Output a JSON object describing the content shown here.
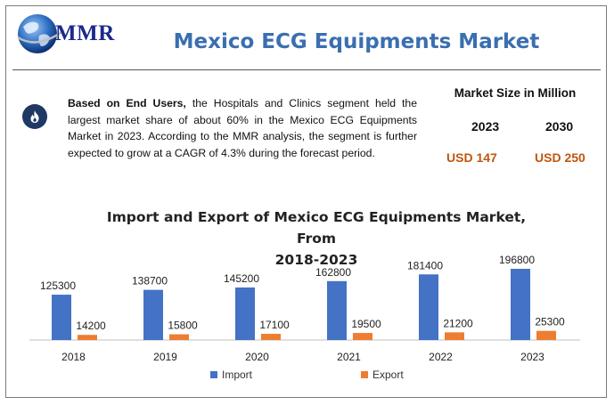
{
  "brand": {
    "logo_text": "MMR"
  },
  "header": {
    "title": "Mexico ECG Equipments Market"
  },
  "info": {
    "bold_lead": "Based on End Users,",
    "text": " the Hospitals and Clinics segment held the largest market share of about 60% in the Mexico ECG Equipments Market in 2023.  According to the MMR analysis, the segment is further expected to grow at a CAGR of 4.3% during the forecast period.",
    "icon": "flame-icon"
  },
  "market_size": {
    "title": "Market Size in Million",
    "year_a": "2023",
    "year_b": "2030",
    "value_a": "USD 147",
    "value_b": "USD 250"
  },
  "colors": {
    "import": "#4472c4",
    "export": "#ed7d31",
    "title": "#3a6fb0",
    "value": "#c0560f"
  },
  "chart_data": {
    "type": "bar",
    "title": "Import and Export of Mexico ECG Equipments Market, From 2018-2023",
    "title_line1": "Import and Export of Mexico ECG Equipments Market, From",
    "title_line2": "2018-2023",
    "categories": [
      "2018",
      "2019",
      "2020",
      "2021",
      "2022",
      "2023"
    ],
    "series": [
      {
        "name": "Import",
        "values": [
          125300,
          138700,
          145200,
          162800,
          181400,
          196800
        ]
      },
      {
        "name": "Export",
        "values": [
          14200,
          15800,
          17100,
          19500,
          21200,
          25300
        ]
      }
    ],
    "legend_position": "bottom",
    "grid": false
  }
}
